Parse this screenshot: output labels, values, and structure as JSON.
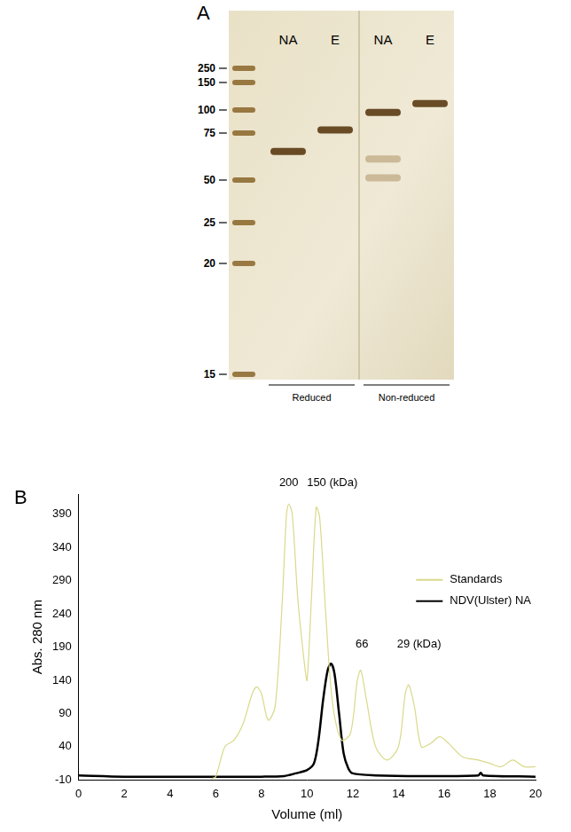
{
  "panels": [
    "A",
    "B"
  ],
  "gel": {
    "markers": [
      250,
      150,
      100,
      75,
      50,
      25,
      20,
      15
    ],
    "conditions": [
      "Reduced",
      "Non-reduced"
    ],
    "lanes": [
      {
        "label": "NA",
        "condition": "Reduced",
        "bands": [
          64
        ]
      },
      {
        "label": "E",
        "condition": "Reduced",
        "bands": [
          78
        ]
      },
      {
        "label": "NA",
        "condition": "Non-reduced",
        "bands": [
          97,
          60,
          51
        ]
      },
      {
        "label": "E",
        "condition": "Non-reduced",
        "bands": [
          110
        ]
      }
    ]
  },
  "chart_data": {
    "type": "line",
    "x_label": "Volume (ml)",
    "y_label": "Abs. 280 nm",
    "xlim": [
      0,
      20
    ],
    "xticks": [
      0,
      2,
      4,
      6,
      8,
      10,
      12,
      14,
      16,
      18,
      20
    ],
    "ylim": [
      -10,
      420
    ],
    "yticks": [
      -10,
      40,
      90,
      140,
      190,
      240,
      290,
      340,
      390
    ],
    "grid": false,
    "legend": "right",
    "annotations": [
      {
        "text": "200",
        "x": 9.2
      },
      {
        "text": "150 (kDa)",
        "x": 11.1
      },
      {
        "text": "66",
        "x": 12.4,
        "y": 185
      },
      {
        "text": "29 (kDa)",
        "x": 14.9,
        "y": 185
      }
    ],
    "series": [
      {
        "name": "Standards",
        "color": "#d9d98a",
        "x": [
          5.8,
          6.0,
          6.4,
          6.8,
          7.2,
          7.6,
          7.8,
          8.0,
          8.3,
          8.6,
          8.9,
          9.1,
          9.2,
          9.35,
          9.6,
          9.9,
          10.0,
          10.2,
          10.4,
          10.55,
          10.8,
          11.1,
          11.5,
          11.9,
          12.2,
          12.35,
          12.6,
          13.0,
          13.5,
          14.0,
          14.3,
          14.45,
          14.7,
          15.0,
          15.4,
          15.8,
          16.2,
          16.8,
          17.5,
          18.0,
          18.5,
          19.0,
          19.5,
          20.0
        ],
        "values": [
          -8,
          -5,
          40,
          50,
          75,
          120,
          130,
          120,
          80,
          100,
          250,
          390,
          405,
          390,
          260,
          160,
          140,
          270,
          400,
          385,
          250,
          110,
          50,
          60,
          140,
          155,
          110,
          40,
          20,
          40,
          120,
          133,
          100,
          40,
          45,
          55,
          45,
          25,
          20,
          15,
          10,
          20,
          10,
          10
        ]
      },
      {
        "name": "NDV(Ulster) NA",
        "color": "#000000",
        "x": [
          0,
          2,
          4,
          6,
          8,
          9,
          9.5,
          10,
          10.3,
          10.5,
          10.7,
          10.9,
          11.05,
          11.2,
          11.4,
          11.6,
          11.8,
          12,
          13,
          15,
          17.5,
          17.6,
          17.7,
          20
        ],
        "values": [
          -3,
          -5,
          -5,
          -5,
          -5,
          -4,
          0,
          5,
          15,
          50,
          110,
          155,
          165,
          150,
          90,
          30,
          8,
          0,
          -3,
          -4,
          -3,
          1,
          -3,
          -5
        ]
      }
    ]
  }
}
